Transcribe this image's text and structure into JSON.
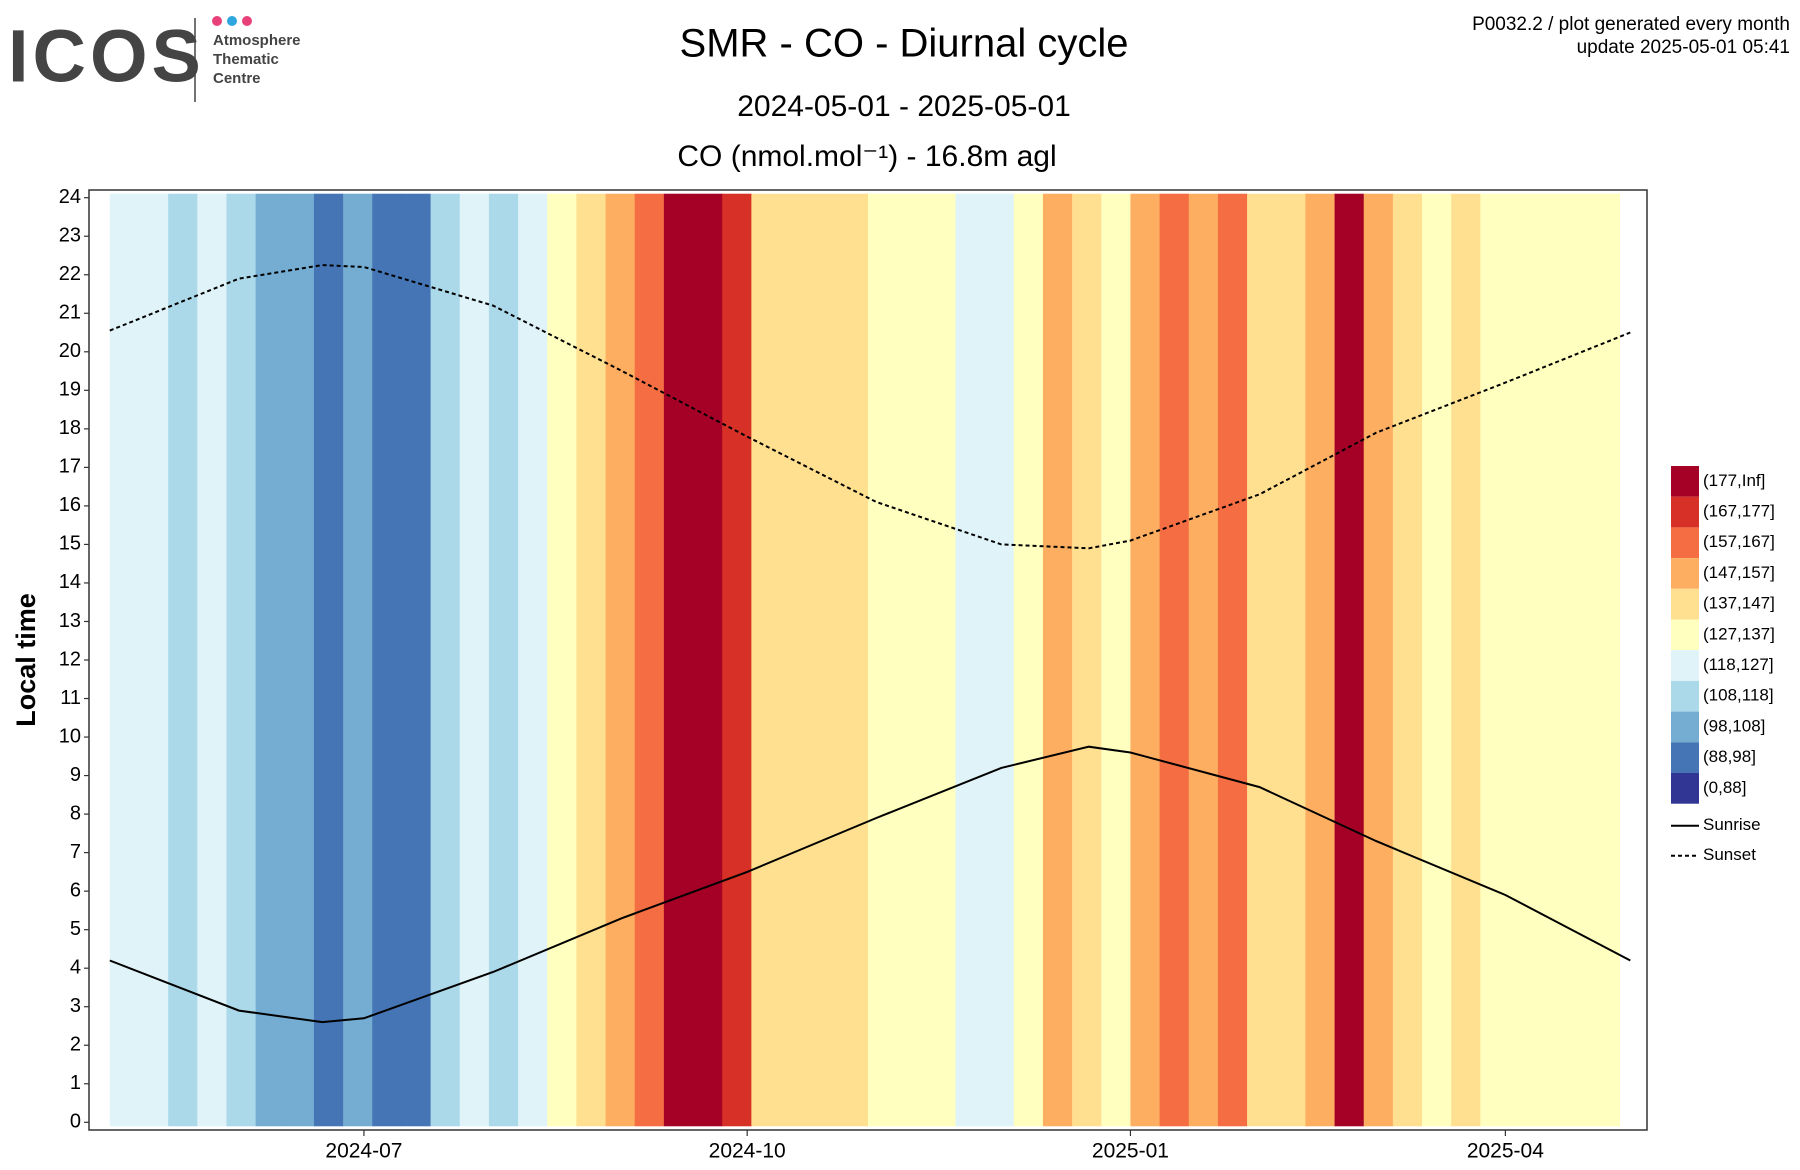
{
  "logo": {
    "name": "ICOS",
    "lines": [
      "Atmosphere",
      "Thematic",
      "Centre"
    ]
  },
  "info": [
    "P0032.2 / plot generated every month",
    "update  2025-05-01 05:41"
  ],
  "chart_data": {
    "type": "heatmap",
    "title": "SMR - CO - Diurnal cycle",
    "subtitle": "2024-05-01 - 2025-05-01",
    "value_label": "CO (nmol.mol⁻¹) - 16.8m agl",
    "ylabel": "Local time",
    "x": [
      "2024-05-01",
      "2024-05-08",
      "2024-05-15",
      "2024-05-22",
      "2024-05-29",
      "2024-06-05",
      "2024-06-12",
      "2024-06-19",
      "2024-06-26",
      "2024-07-03",
      "2024-07-10",
      "2024-07-17",
      "2024-07-24",
      "2024-07-31",
      "2024-08-07",
      "2024-08-14",
      "2024-08-21",
      "2024-08-28",
      "2024-09-04",
      "2024-09-11",
      "2024-09-18",
      "2024-09-25",
      "2024-10-02",
      "2024-10-09",
      "2024-10-16",
      "2024-10-23",
      "2024-10-30",
      "2024-11-06",
      "2024-11-13",
      "2024-11-20",
      "2024-11-27",
      "2024-12-04",
      "2024-12-11",
      "2024-12-18",
      "2024-12-25",
      "2025-01-01",
      "2025-01-08",
      "2025-01-15",
      "2025-01-22",
      "2025-01-29",
      "2025-02-05",
      "2025-02-12",
      "2025-02-19",
      "2025-02-26",
      "2025-03-05",
      "2025-03-12",
      "2025-03-19",
      "2025-03-26",
      "2025-04-02",
      "2025-04-09",
      "2025-04-16",
      "2025-04-23"
    ],
    "values": [
      122,
      120,
      115,
      125,
      112,
      105,
      100,
      95,
      100,
      92,
      93,
      112,
      120,
      118,
      125,
      132,
      140,
      150,
      160,
      178,
      180,
      170,
      145,
      140,
      138,
      142,
      135,
      130,
      132,
      125,
      120,
      128,
      148,
      140,
      135,
      150,
      165,
      150,
      158,
      145,
      142,
      148,
      180,
      150,
      140,
      135,
      138,
      132,
      130,
      131,
      128,
      130
    ],
    "series": [
      {
        "name": "Sunrise",
        "color": "#000000",
        "dash": false,
        "x": [
          "2024-05-01",
          "2024-06-01",
          "2024-06-21",
          "2024-07-01",
          "2024-08-01",
          "2024-09-01",
          "2024-10-01",
          "2024-11-01",
          "2024-12-01",
          "2024-12-22",
          "2025-01-01",
          "2025-02-01",
          "2025-03-01",
          "2025-04-01",
          "2025-05-01"
        ],
        "values": [
          4.2,
          2.9,
          2.6,
          2.7,
          3.9,
          5.3,
          6.5,
          7.9,
          9.2,
          9.75,
          9.6,
          8.7,
          7.3,
          5.9,
          4.2
        ]
      },
      {
        "name": "Sunset",
        "color": "#000000",
        "dash": true,
        "x": [
          "2024-05-01",
          "2024-06-01",
          "2024-06-21",
          "2024-07-01",
          "2024-08-01",
          "2024-09-01",
          "2024-10-01",
          "2024-11-01",
          "2024-12-01",
          "2024-12-22",
          "2025-01-01",
          "2025-02-01",
          "2025-03-01",
          "2025-04-01",
          "2025-05-01"
        ],
        "values": [
          20.55,
          21.9,
          22.25,
          22.2,
          21.2,
          19.5,
          17.8,
          16.1,
          15.0,
          14.9,
          15.1,
          16.3,
          17.9,
          19.2,
          20.5
        ]
      }
    ],
    "legend": [
      {
        "label": "(177,Inf]",
        "color": "#a50026"
      },
      {
        "label": "(167,177]",
        "color": "#d73027"
      },
      {
        "label": "(157,167]",
        "color": "#f46d43"
      },
      {
        "label": "(147,157]",
        "color": "#fdae61"
      },
      {
        "label": "(137,147]",
        "color": "#fee090"
      },
      {
        "label": "(127,137]",
        "color": "#ffffbf"
      },
      {
        "label": "(118,127]",
        "color": "#e0f3f8"
      },
      {
        "label": "(108,118]",
        "color": "#abd9e9"
      },
      {
        "label": "(98,108]",
        "color": "#74add1"
      },
      {
        "label": "(88,98]",
        "color": "#4575b4"
      },
      {
        "label": "(0,88]",
        "color": "#313695"
      }
    ],
    "xlim": [
      "2024-04-26",
      "2025-05-05"
    ],
    "xticks": [
      {
        "value": "2024-07-01",
        "label": "2024-07"
      },
      {
        "value": "2024-10-01",
        "label": "2024-10"
      },
      {
        "value": "2025-01-01",
        "label": "2025-01"
      },
      {
        "value": "2025-04-01",
        "label": "2025-04"
      }
    ],
    "ylim": [
      -0.2,
      24.2
    ],
    "yticks": [
      0,
      1,
      2,
      3,
      4,
      5,
      6,
      7,
      8,
      9,
      10,
      11,
      12,
      13,
      14,
      15,
      16,
      17,
      18,
      19,
      20,
      21,
      22,
      23,
      24
    ]
  }
}
